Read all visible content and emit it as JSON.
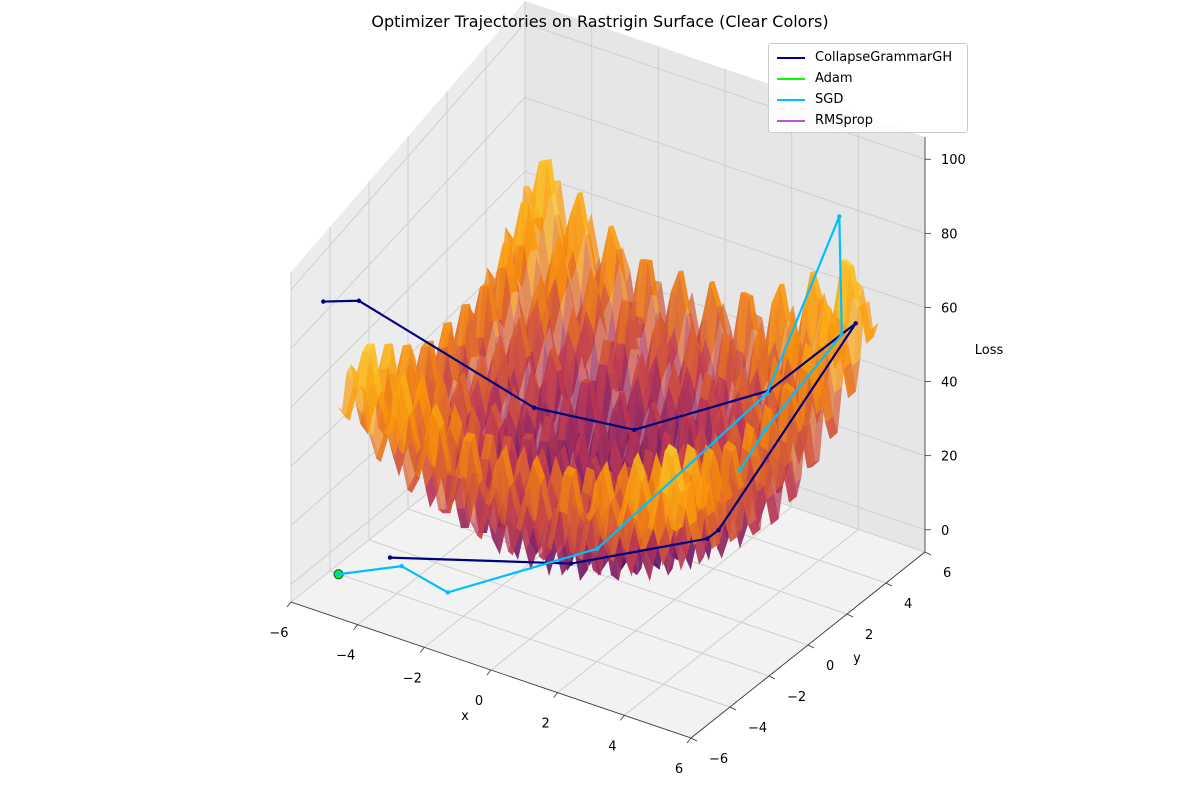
{
  "chart_data": {
    "type": "surface3d",
    "title": "Optimizer Trajectories on Rastrigin Surface (Clear Colors)",
    "xlabel": "x",
    "ylabel": "y",
    "zlabel": "Loss",
    "xlim": [
      -6,
      6
    ],
    "ylim": [
      -6,
      6
    ],
    "zlim": [
      0,
      100
    ],
    "x_ticks": [
      "−6",
      "−4",
      "−2",
      "0",
      "2",
      "4",
      "6"
    ],
    "y_ticks": [
      "−6",
      "−4",
      "−2",
      "0",
      "2",
      "4",
      "6"
    ],
    "z_ticks": [
      "0",
      "20",
      "40",
      "60",
      "80",
      "100"
    ],
    "grid": true,
    "colormap": "inferno",
    "surface": {
      "function": "Rastrigin",
      "domain": [
        -5.12,
        5.12
      ]
    },
    "legend_position": "top-right",
    "series": [
      {
        "name": "CollapseGrammarGH",
        "color": "#000080",
        "points": [
          [
            -5.5,
            -5.2,
            92
          ],
          [
            -5.6,
            -3.2,
            78
          ],
          [
            -2.8,
            1.0,
            30
          ],
          [
            -0.5,
            2.2,
            25
          ],
          [
            2.6,
            3.8,
            38
          ],
          [
            4.8,
            4.5,
            60
          ],
          [
            3.2,
            0.2,
            18
          ],
          [
            4.5,
            -2.6,
            35
          ],
          [
            1.0,
            -3.6,
            20
          ],
          [
            -4.2,
            -4.0,
            5
          ]
        ]
      },
      {
        "name": "Adam",
        "color": "#00ff00",
        "points": [
          [
            -5.1,
            -5.1,
            2
          ]
        ]
      },
      {
        "name": "SGD",
        "color": "#00bfff",
        "points": [
          [
            -5.1,
            -5.1,
            2
          ],
          [
            -3.5,
            -4.6,
            8
          ],
          [
            -2.0,
            -4.8,
            6
          ],
          [
            1.2,
            -2.6,
            20
          ],
          [
            3.6,
            2.0,
            50
          ],
          [
            4.6,
            4.0,
            92
          ],
          [
            5.2,
            3.1,
            66
          ],
          [
            4.0,
            1.2,
            45
          ],
          [
            3.6,
            0.6,
            35
          ]
        ]
      },
      {
        "name": "RMSprop",
        "color": "#ba55d3",
        "points": []
      }
    ]
  }
}
